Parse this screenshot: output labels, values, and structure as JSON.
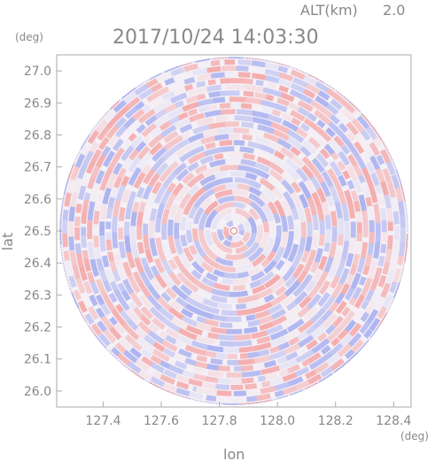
{
  "header": {
    "altitude_label": "ALT(km)",
    "altitude_value": "2.0",
    "datetime": "2017/10/24 14:03:30"
  },
  "axes": {
    "x_label": "lon",
    "y_label": "lat",
    "x_unit": "(deg)",
    "y_unit": "(deg)",
    "x_range": [
      127.24,
      128.46
    ],
    "y_range": [
      25.95,
      27.05
    ],
    "x_ticks": [
      "127.4",
      "127.6",
      "127.8",
      "128.0",
      "128.2",
      "128.4"
    ],
    "y_ticks": [
      "27.0",
      "26.9",
      "26.8",
      "26.7",
      "26.6",
      "26.5",
      "26.4",
      "26.3",
      "26.2",
      "26.1",
      "26.0"
    ]
  },
  "radar": {
    "center_lon": 127.85,
    "center_lat": 26.5,
    "max_range_lon_deg": 0.6,
    "colors": {
      "positive": "#f5a8a8",
      "negative": "#a8b0f0",
      "neutral": "#f4f0f6",
      "frame": "#aaaaaa"
    }
  }
}
